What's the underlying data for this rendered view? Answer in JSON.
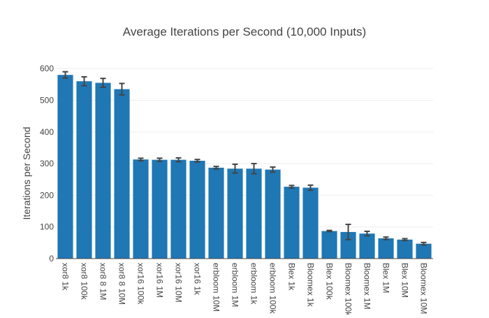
{
  "chart_data": {
    "type": "bar",
    "title": "Average Iterations per Second (10,000 Inputs)",
    "xlabel": "",
    "ylabel": "Iterations per Second",
    "ylim": [
      0,
      640
    ],
    "yticks": [
      0,
      100,
      200,
      300,
      400,
      500,
      600
    ],
    "grid": true,
    "legend": "none",
    "bar_color": "#1f77b4",
    "error_bar_color": "#444444",
    "categories": [
      "xor8 1k",
      "xor8 100k",
      "xor8 8 1M",
      "xor8 8 10M",
      "xor16 100k",
      "xor16 1M",
      "xor16 10M",
      "xor16 1k",
      "erbloom 10M",
      "erbloom 1M",
      "erbloom 1k",
      "erbloom 100k",
      "Blex 1k",
      "Bloomex 1k",
      "Blex 100k",
      "Bloomex 100k",
      "Bloomex 1M",
      "Blex 1M",
      "Blex 10M",
      "Bloomex 10M"
    ],
    "values": [
      580,
      560,
      555,
      535,
      313,
      312,
      312,
      309,
      287,
      284,
      284,
      281,
      227,
      224,
      87,
      84,
      79,
      64,
      60,
      47
    ],
    "errors": [
      10,
      14,
      14,
      18,
      4,
      5,
      6,
      4,
      4,
      14,
      16,
      8,
      4,
      8,
      2,
      24,
      7,
      4,
      3,
      4
    ]
  }
}
